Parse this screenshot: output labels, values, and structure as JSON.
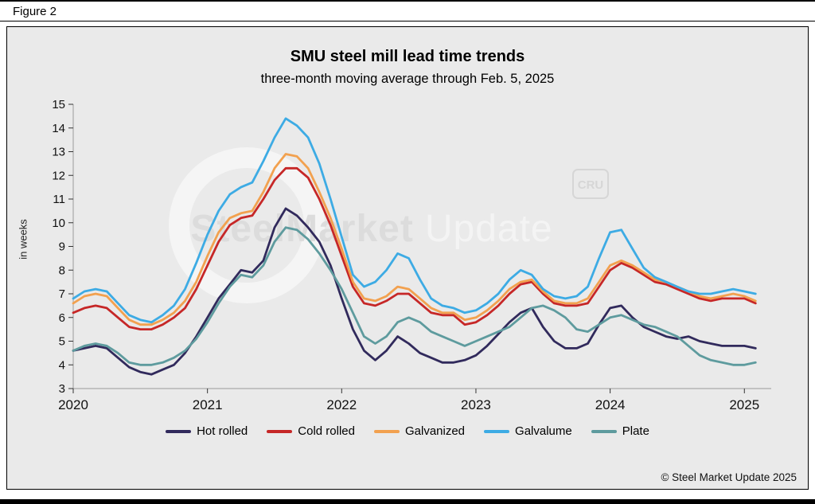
{
  "figure_label": "Figure 2",
  "title": "SMU steel mill lead time trends",
  "subtitle": "three-month moving average through Feb. 5, 2025",
  "y_axis_label": "in weeks",
  "watermark": {
    "part1": "SteelMarket",
    "part2": "Update",
    "cru": "CRU"
  },
  "copyright": "© Steel Market Update 2025",
  "chart_data": {
    "type": "line",
    "title": "SMU steel mill lead time trends",
    "subtitle": "three-month moving average through Feb. 5, 2025",
    "ylabel": "in weeks",
    "xlabel": "",
    "x_start": 2020,
    "x_step": 0.0833333,
    "x_interval": "monthly, Jan 2020 through Feb 2025",
    "xlim": [
      2020,
      2025.2
    ],
    "ylim": [
      3,
      15
    ],
    "xticks": [
      2020,
      2021,
      2022,
      2023,
      2024,
      2025
    ],
    "yticks": [
      3,
      4,
      5,
      6,
      7,
      8,
      9,
      10,
      11,
      12,
      13,
      14,
      15
    ],
    "grid": false,
    "legend_position": "bottom",
    "series": [
      {
        "name": "Hot rolled",
        "color": "#312a5c",
        "values": [
          4.6,
          4.7,
          4.8,
          4.7,
          4.3,
          3.9,
          3.7,
          3.6,
          3.8,
          4.0,
          4.5,
          5.2,
          6.0,
          6.8,
          7.4,
          8.0,
          7.9,
          8.4,
          9.8,
          10.6,
          10.3,
          9.8,
          9.2,
          8.2,
          6.8,
          5.5,
          4.6,
          4.2,
          4.6,
          5.2,
          4.9,
          4.5,
          4.3,
          4.1,
          4.1,
          4.2,
          4.4,
          4.8,
          5.3,
          5.8,
          6.2,
          6.4,
          5.6,
          5.0,
          4.7,
          4.7,
          4.9,
          5.7,
          6.4,
          6.5,
          6.0,
          5.6,
          5.4,
          5.2,
          5.1,
          5.2,
          5.0,
          4.9,
          4.8,
          4.8,
          4.8,
          4.7
        ]
      },
      {
        "name": "Cold rolled",
        "color": "#c62727",
        "values": [
          6.2,
          6.4,
          6.5,
          6.4,
          6.0,
          5.6,
          5.5,
          5.5,
          5.7,
          6.0,
          6.4,
          7.2,
          8.2,
          9.2,
          9.9,
          10.2,
          10.3,
          11.0,
          11.8,
          12.3,
          12.3,
          11.9,
          11.0,
          9.9,
          8.6,
          7.3,
          6.6,
          6.5,
          6.7,
          7.0,
          7.0,
          6.6,
          6.2,
          6.1,
          6.1,
          5.7,
          5.8,
          6.1,
          6.5,
          7.0,
          7.4,
          7.5,
          7.0,
          6.6,
          6.5,
          6.5,
          6.6,
          7.3,
          8.0,
          8.3,
          8.1,
          7.8,
          7.5,
          7.4,
          7.2,
          7.0,
          6.8,
          6.7,
          6.8,
          6.8,
          6.8,
          6.6
        ]
      },
      {
        "name": "Galvanized",
        "color": "#f2a14f",
        "values": [
          6.6,
          6.9,
          7.0,
          6.9,
          6.4,
          5.9,
          5.7,
          5.7,
          5.9,
          6.2,
          6.7,
          7.5,
          8.6,
          9.6,
          10.2,
          10.4,
          10.5,
          11.3,
          12.3,
          12.9,
          12.8,
          12.3,
          11.3,
          10.2,
          8.9,
          7.5,
          6.8,
          6.7,
          6.9,
          7.3,
          7.2,
          6.8,
          6.4,
          6.2,
          6.2,
          5.9,
          6.0,
          6.3,
          6.7,
          7.2,
          7.5,
          7.6,
          7.1,
          6.7,
          6.6,
          6.6,
          6.8,
          7.5,
          8.2,
          8.4,
          8.2,
          7.9,
          7.6,
          7.5,
          7.3,
          7.1,
          6.9,
          6.8,
          6.9,
          7.0,
          6.9,
          6.7
        ]
      },
      {
        "name": "Galvalume",
        "color": "#3dabe4",
        "values": [
          6.8,
          7.1,
          7.2,
          7.1,
          6.6,
          6.1,
          5.9,
          5.8,
          6.1,
          6.5,
          7.2,
          8.3,
          9.5,
          10.5,
          11.2,
          11.5,
          11.7,
          12.6,
          13.6,
          14.4,
          14.1,
          13.6,
          12.5,
          11.0,
          9.4,
          7.8,
          7.3,
          7.5,
          8.0,
          8.7,
          8.5,
          7.6,
          6.8,
          6.5,
          6.4,
          6.2,
          6.3,
          6.6,
          7.0,
          7.6,
          8.0,
          7.8,
          7.2,
          6.9,
          6.8,
          6.9,
          7.3,
          8.5,
          9.6,
          9.7,
          8.9,
          8.1,
          7.7,
          7.5,
          7.3,
          7.1,
          7.0,
          7.0,
          7.1,
          7.2,
          7.1,
          7.0
        ]
      },
      {
        "name": "Plate",
        "color": "#5e9b9e",
        "values": [
          4.6,
          4.8,
          4.9,
          4.8,
          4.5,
          4.1,
          4.0,
          4.0,
          4.1,
          4.3,
          4.6,
          5.1,
          5.8,
          6.6,
          7.3,
          7.8,
          7.7,
          8.2,
          9.2,
          9.8,
          9.7,
          9.3,
          8.7,
          8.0,
          7.2,
          6.2,
          5.2,
          4.9,
          5.2,
          5.8,
          6.0,
          5.8,
          5.4,
          5.2,
          5.0,
          4.8,
          5.0,
          5.2,
          5.4,
          5.6,
          6.0,
          6.4,
          6.5,
          6.3,
          6.0,
          5.5,
          5.4,
          5.7,
          6.0,
          6.1,
          5.9,
          5.7,
          5.6,
          5.4,
          5.2,
          4.8,
          4.4,
          4.2,
          4.1,
          4.0,
          4.0,
          4.1
        ]
      }
    ]
  }
}
